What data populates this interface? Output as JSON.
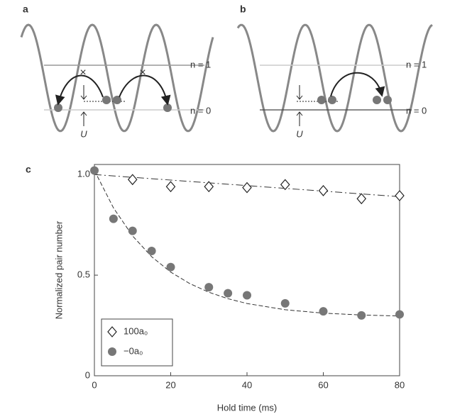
{
  "panels": [
    {
      "label": "a",
      "upper_level": "n = 1",
      "lower_level": "n = 0",
      "gap_label": "U"
    },
    {
      "label": "b",
      "upper_level": "n = 1",
      "lower_level": "n = 0",
      "gap_label": "U"
    }
  ],
  "chart_data": {
    "type": "scatter",
    "panel_label": "c",
    "x_label": "Hold time (ms)",
    "y_label": "Normalized pair number",
    "xlim": [
      0,
      80
    ],
    "xticks": [
      0,
      20,
      40,
      60,
      80
    ],
    "ylim": [
      0,
      1.05
    ],
    "yticks": [
      0,
      0.5,
      {
        "value": 1,
        "label": "1.0"
      }
    ],
    "series": [
      {
        "name": "100a₀",
        "marker": "diamond",
        "color": "#222222",
        "x": [
          10,
          20,
          30,
          40,
          50,
          60,
          70,
          80
        ],
        "values": [
          0.975,
          0.94,
          0.94,
          0.935,
          0.95,
          0.92,
          0.88,
          0.895
        ]
      },
      {
        "name": "−0a₀",
        "marker": "circle",
        "color": "#777777",
        "x": [
          0,
          5,
          10,
          15,
          20,
          30,
          35,
          40,
          50,
          60,
          70,
          80
        ],
        "values": [
          1.02,
          0.78,
          0.72,
          0.62,
          0.54,
          0.44,
          0.41,
          0.4,
          0.36,
          0.32,
          0.3,
          0.305
        ]
      }
    ],
    "fits": [
      {
        "dash": "10 4 2 4",
        "x": [
          0,
          80
        ],
        "values": [
          1.0,
          0.89
        ]
      },
      {
        "dash": "6 3",
        "x": [
          0,
          5,
          10,
          15,
          20,
          25,
          30,
          35,
          40,
          50,
          60,
          70,
          80
        ],
        "values": [
          1.02,
          0.834,
          0.695,
          0.592,
          0.515,
          0.458,
          0.415,
          0.383,
          0.359,
          0.328,
          0.311,
          0.302,
          0.297
        ]
      }
    ]
  }
}
